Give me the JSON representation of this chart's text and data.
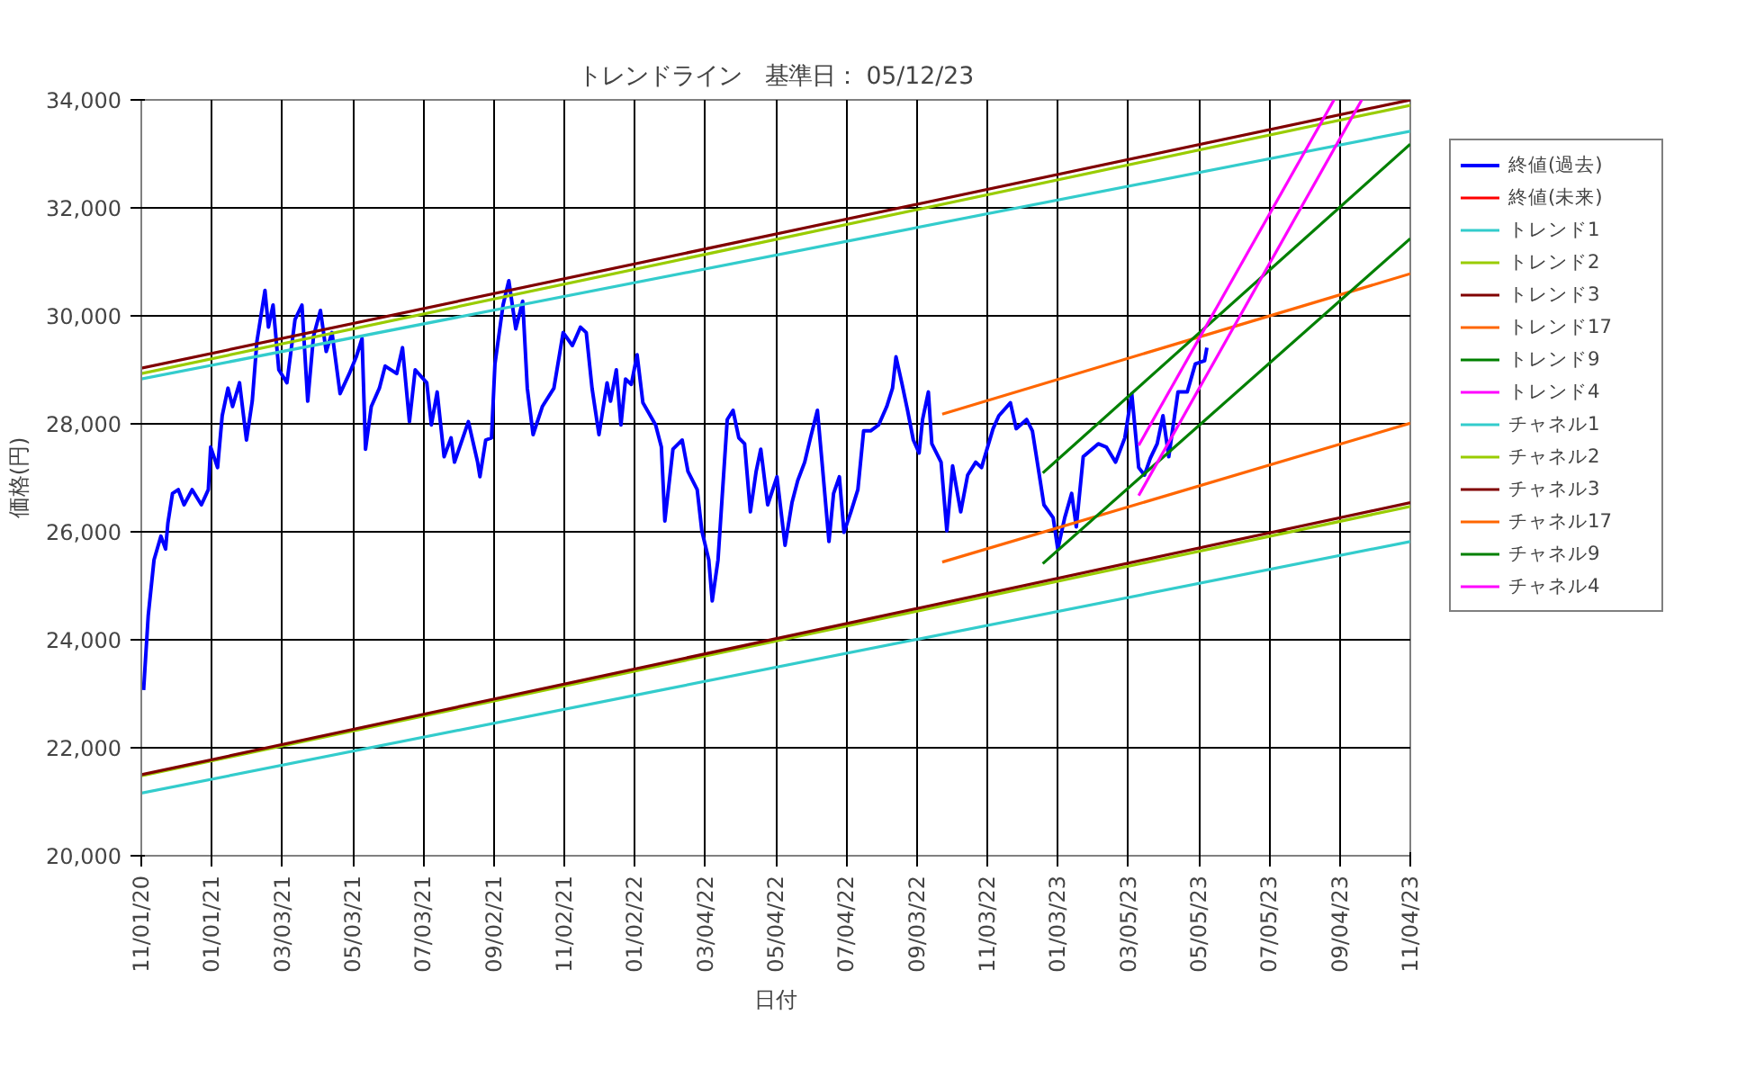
{
  "chart_data": {
    "type": "line",
    "title": "トレンドライン　基準日： 05/12/23",
    "xlabel": "日付",
    "ylabel": "価格(円)",
    "xlim": [
      "2020-11-01",
      "2023-11-04"
    ],
    "xticks": [
      {
        "value": "2020-11-01",
        "label": "11/01/20"
      },
      {
        "value": "2021-01-01",
        "label": "01/01/21"
      },
      {
        "value": "2021-03-03",
        "label": "03/03/21"
      },
      {
        "value": "2021-05-03",
        "label": "05/03/21"
      },
      {
        "value": "2021-07-03",
        "label": "07/03/21"
      },
      {
        "value": "2021-09-02",
        "label": "09/02/21"
      },
      {
        "value": "2021-11-02",
        "label": "11/02/21"
      },
      {
        "value": "2022-01-02",
        "label": "01/02/22"
      },
      {
        "value": "2022-03-04",
        "label": "03/04/22"
      },
      {
        "value": "2022-05-04",
        "label": "05/04/22"
      },
      {
        "value": "2022-07-04",
        "label": "07/04/22"
      },
      {
        "value": "2022-09-03",
        "label": "09/03/22"
      },
      {
        "value": "2022-11-03",
        "label": "11/03/22"
      },
      {
        "value": "2023-01-03",
        "label": "01/03/23"
      },
      {
        "value": "2023-03-05",
        "label": "03/05/23"
      },
      {
        "value": "2023-05-05",
        "label": "05/05/23"
      },
      {
        "value": "2023-07-05",
        "label": "07/05/23"
      },
      {
        "value": "2023-09-04",
        "label": "09/04/23"
      },
      {
        "value": "2023-11-04",
        "label": "11/04/23"
      }
    ],
    "ylim": [
      20000,
      34000
    ],
    "yticks": [
      {
        "value": 20000,
        "label": "20,000"
      },
      {
        "value": 22000,
        "label": "22,000"
      },
      {
        "value": 24000,
        "label": "24,000"
      },
      {
        "value": 26000,
        "label": "26,000"
      },
      {
        "value": 28000,
        "label": "28,000"
      },
      {
        "value": 30000,
        "label": "30,000"
      },
      {
        "value": 32000,
        "label": "32,000"
      },
      {
        "value": 34000,
        "label": "34,000"
      }
    ],
    "grid": true,
    "legend": "right",
    "series": [
      {
        "name": "終値(過去)",
        "color": "#0000ff",
        "x": [
          "2020-11-03",
          "2020-11-07",
          "2020-11-12",
          "2020-11-18",
          "2020-11-22",
          "2020-11-24",
          "2020-11-28",
          "2020-12-03",
          "2020-12-08",
          "2020-12-15",
          "2020-12-23",
          "2020-12-29",
          "2020-12-31",
          "2021-01-06",
          "2021-01-10",
          "2021-01-15",
          "2021-01-19",
          "2021-01-25",
          "2021-01-31",
          "2021-02-05",
          "2021-02-09",
          "2021-02-16",
          "2021-02-19",
          "2021-02-23",
          "2021-02-28",
          "2021-03-07",
          "2021-03-14",
          "2021-03-20",
          "2021-03-25",
          "2021-03-30",
          "2021-04-05",
          "2021-04-10",
          "2021-04-15",
          "2021-04-22",
          "2021-04-30",
          "2021-05-06",
          "2021-05-11",
          "2021-05-14",
          "2021-05-19",
          "2021-05-26",
          "2021-05-31",
          "2021-06-10",
          "2021-06-15",
          "2021-06-21",
          "2021-06-26",
          "2021-07-06",
          "2021-07-10",
          "2021-07-15",
          "2021-07-21",
          "2021-07-27",
          "2021-07-30",
          "2021-08-11",
          "2021-08-19",
          "2021-08-21",
          "2021-08-26",
          "2021-08-31",
          "2021-09-03",
          "2021-09-10",
          "2021-09-15",
          "2021-09-21",
          "2021-09-27",
          "2021-10-01",
          "2021-10-06",
          "2021-10-14",
          "2021-10-24",
          "2021-11-01",
          "2021-11-09",
          "2021-11-16",
          "2021-11-21",
          "2021-11-26",
          "2021-12-02",
          "2021-12-09",
          "2021-12-12",
          "2021-12-17",
          "2021-12-21",
          "2021-12-25",
          "2021-12-30",
          "2022-01-04",
          "2022-01-09",
          "2022-01-20",
          "2022-01-25",
          "2022-01-28",
          "2022-02-04",
          "2022-02-12",
          "2022-02-17",
          "2022-02-25",
          "2022-03-01",
          "2022-03-07",
          "2022-03-10",
          "2022-03-15",
          "2022-03-23",
          "2022-03-28",
          "2022-04-02",
          "2022-04-07",
          "2022-04-12",
          "2022-04-17",
          "2022-04-21",
          "2022-04-27",
          "2022-05-05",
          "2022-05-12",
          "2022-05-18",
          "2022-05-23",
          "2022-05-29",
          "2022-06-03",
          "2022-06-09",
          "2022-06-13",
          "2022-06-19",
          "2022-06-23",
          "2022-06-28",
          "2022-07-02",
          "2022-07-08",
          "2022-07-14",
          "2022-07-19",
          "2022-07-25",
          "2022-08-01",
          "2022-08-08",
          "2022-08-13",
          "2022-08-16",
          "2022-08-21",
          "2022-08-26",
          "2022-08-31",
          "2022-09-05",
          "2022-09-08",
          "2022-09-13",
          "2022-09-16",
          "2022-09-24",
          "2022-09-29",
          "2022-10-04",
          "2022-10-11",
          "2022-10-17",
          "2022-10-24",
          "2022-10-29",
          "2022-11-08",
          "2022-11-13",
          "2022-11-23",
          "2022-11-28",
          "2022-12-07",
          "2022-12-12",
          "2022-12-17",
          "2022-12-22",
          "2022-12-30",
          "2023-01-03",
          "2023-01-09",
          "2023-01-15",
          "2023-01-19",
          "2023-01-25",
          "2023-02-07",
          "2023-02-14",
          "2023-02-22",
          "2023-03-02",
          "2023-03-08",
          "2023-03-14",
          "2023-03-19",
          "2023-03-24",
          "2023-03-30",
          "2023-04-04",
          "2023-04-09",
          "2023-04-17",
          "2023-04-25",
          "2023-05-02",
          "2023-05-10",
          "2023-05-12"
        ],
        "values": [
          23070,
          24450,
          25480,
          25920,
          25680,
          26160,
          26710,
          26780,
          26500,
          26780,
          26500,
          26780,
          27570,
          27190,
          28150,
          28660,
          28320,
          28760,
          27700,
          28420,
          29520,
          30470,
          29790,
          30200,
          29000,
          28760,
          29930,
          30200,
          28420,
          29620,
          30100,
          29340,
          29690,
          28560,
          28930,
          29240,
          29580,
          27530,
          28320,
          28660,
          29070,
          28930,
          29410,
          28040,
          29000,
          28760,
          27980,
          28590,
          27390,
          27740,
          27290,
          28040,
          27290,
          27020,
          27700,
          27740,
          29110,
          30200,
          30650,
          29760,
          30270,
          28660,
          27800,
          28320,
          28660,
          29690,
          29450,
          29790,
          29690,
          28660,
          27800,
          28760,
          28420,
          29000,
          27980,
          28830,
          28730,
          29280,
          28390,
          27980,
          27570,
          26200,
          27530,
          27700,
          27120,
          26780,
          26020,
          25480,
          24720,
          25480,
          28080,
          28250,
          27740,
          27630,
          26370,
          27120,
          27530,
          26500,
          27020,
          25750,
          26540,
          26950,
          27290,
          27740,
          28250,
          27290,
          25820,
          26710,
          27020,
          25990,
          26370,
          26780,
          27870,
          27870,
          27980,
          28320,
          28660,
          29240,
          28760,
          28250,
          27700,
          27460,
          28080,
          28590,
          27630,
          27290,
          26020,
          27220,
          26370,
          27050,
          27290,
          27190,
          27910,
          28150,
          28390,
          27910,
          28080,
          27870,
          27190,
          26500,
          26260,
          25680,
          26260,
          26710,
          26090,
          27390,
          27630,
          27570,
          27290,
          27740,
          28560,
          27190,
          27050,
          27360,
          27630,
          28150,
          27390,
          28590,
          28590,
          29110,
          29170,
          29410
        ]
      },
      {
        "name": "終値(未来)",
        "color": "#ff0000"
      },
      {
        "name": "トレンド1",
        "color": "#33cccc",
        "x": [
          "2020-11-01",
          "2023-11-04"
        ],
        "values": [
          28830,
          33420
        ]
      },
      {
        "name": "トレンド2",
        "color": "#99cc00",
        "x": [
          "2020-11-01",
          "2023-11-04"
        ],
        "values": [
          28930,
          33900
        ]
      },
      {
        "name": "トレンド3",
        "color": "#800000",
        "x": [
          "2020-11-01",
          "2023-11-04"
        ],
        "values": [
          29030,
          34000
        ]
      },
      {
        "name": "トレンド17",
        "color": "#ff6600",
        "x": [
          "2022-09-25",
          "2023-11-04"
        ],
        "values": [
          28180,
          30780
        ]
      },
      {
        "name": "トレンド9",
        "color": "#008000",
        "x": [
          "2022-12-21",
          "2023-11-04"
        ],
        "values": [
          27090,
          33180
        ]
      },
      {
        "name": "トレンド4",
        "color": "#ff00ff",
        "x": [
          "2023-03-14",
          "2023-08-30"
        ],
        "values": [
          27600,
          34000
        ]
      },
      {
        "name": "チャネル1",
        "color": "#33cccc",
        "x": [
          "2020-11-01",
          "2023-11-04"
        ],
        "values": [
          21160,
          25820
        ]
      },
      {
        "name": "チャネル2",
        "color": "#99cc00",
        "x": [
          "2020-11-01",
          "2023-11-04"
        ],
        "values": [
          21480,
          26470
        ]
      },
      {
        "name": "チャネル3",
        "color": "#800000",
        "x": [
          "2020-11-01",
          "2023-11-04"
        ],
        "values": [
          21500,
          26540
        ]
      },
      {
        "name": "チャネル17",
        "color": "#ff6600",
        "x": [
          "2022-09-25",
          "2023-11-04"
        ],
        "values": [
          25440,
          28010
        ]
      },
      {
        "name": "チャネル9",
        "color": "#008000",
        "x": [
          "2022-12-21",
          "2023-11-04"
        ],
        "values": [
          25410,
          31430
        ]
      },
      {
        "name": "チャネル4",
        "color": "#ff00ff",
        "x": [
          "2023-03-14",
          "2023-09-23"
        ],
        "values": [
          26670,
          34000
        ]
      }
    ]
  }
}
